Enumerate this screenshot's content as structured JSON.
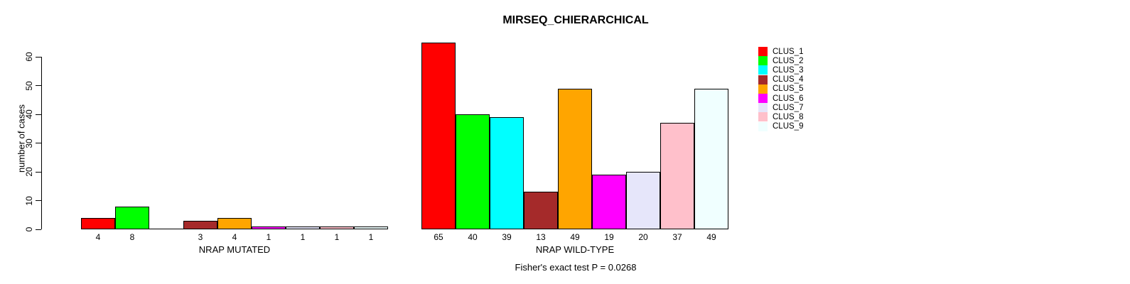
{
  "chart_data": {
    "type": "bar",
    "title": "MIRSEQ_CHIERARCHICAL",
    "ylabel": "number of cases",
    "xlabel": "",
    "ylim": [
      0,
      65
    ],
    "yticks": [
      0,
      10,
      20,
      30,
      40,
      50,
      60
    ],
    "grid": false,
    "legend_position": "right-outside",
    "categories": [
      "NRAP MUTATED",
      "NRAP WILD-TYPE"
    ],
    "series": [
      {
        "name": "CLUS_1",
        "color": "#FF0000",
        "values": [
          4,
          65
        ]
      },
      {
        "name": "CLUS_2",
        "color": "#00FF00",
        "values": [
          8,
          40
        ]
      },
      {
        "name": "CLUS_3",
        "color": "#00FFFF",
        "values": [
          0,
          39
        ]
      },
      {
        "name": "CLUS_4",
        "color": "#A52A2A",
        "values": [
          3,
          13
        ]
      },
      {
        "name": "CLUS_5",
        "color": "#FFA500",
        "values": [
          4,
          49
        ]
      },
      {
        "name": "CLUS_6",
        "color": "#FF00FF",
        "values": [
          1,
          19
        ]
      },
      {
        "name": "CLUS_7",
        "color": "#E6E6FA",
        "values": [
          1,
          20
        ]
      },
      {
        "name": "CLUS_8",
        "color": "#FFC0CB",
        "values": [
          1,
          37
        ]
      },
      {
        "name": "CLUS_9",
        "color": "#F0FFFF",
        "values": [
          1,
          49
        ]
      }
    ],
    "bar_value_labels_shown": true,
    "zero_value_labels_hidden": true,
    "annotation": "Fisher's exact test P = 0.0268"
  }
}
